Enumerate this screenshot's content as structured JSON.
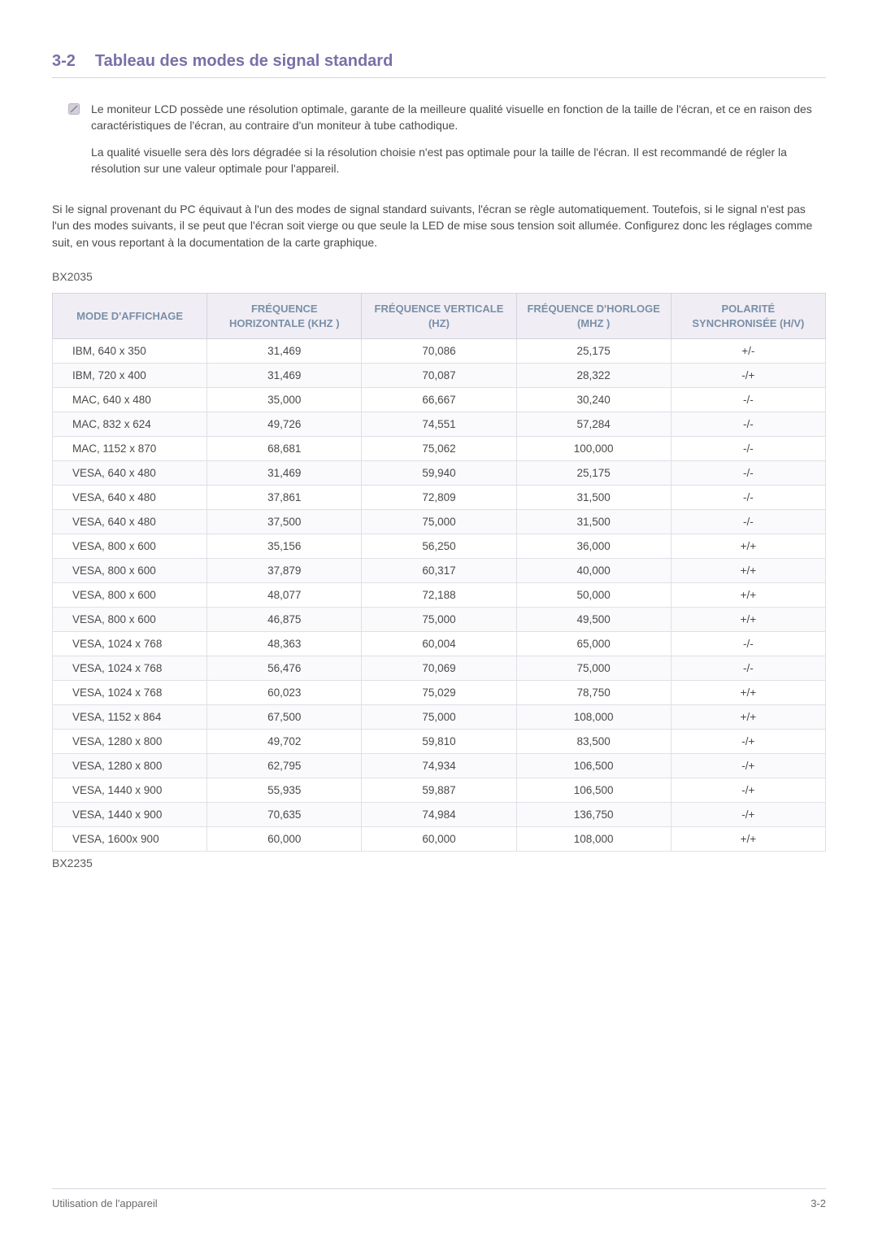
{
  "heading": {
    "num": "3-2",
    "title": "Tableau des modes de signal standard"
  },
  "note": {
    "p1": "Le moniteur LCD possède une résolution optimale, garante de la meilleure qualité visuelle en fonction de la taille de l'écran, et ce en raison des caractéristiques de l'écran, au contraire d'un moniteur à tube cathodique.",
    "p2": "La qualité visuelle sera dès lors dégradée si la résolution choisie n'est pas optimale pour la taille de l'écran. Il est recommandé de régler la résolution sur une valeur optimale pour l'appareil."
  },
  "body_para": "Si le signal provenant du PC équivaut à l'un des modes de signal standard suivants, l'écran se règle automatiquement. Toutefois, si le signal n'est pas l'un des modes suivants, il se peut que l'écran soit vierge ou que seule la LED de mise sous tension soit allumée. Configurez donc les réglages comme suit, en vous reportant à la documentation de la carte graphique.",
  "model_top": "BX2035",
  "model_bottom": "BX2235",
  "table": {
    "columns": [
      "MODE D'AFFICHAGE",
      "FRÉQUENCE HORIZONTALE (KHZ )",
      "FRÉQUENCE VERTICALE (HZ)",
      "FRÉQUENCE D'HORLOGE (MHZ )",
      "POLARITÉ SYNCHRONISÉE (H/V)"
    ],
    "col_widths": [
      "20%",
      "20%",
      "20%",
      "20%",
      "20%"
    ],
    "header_bg": "#f0eef4",
    "header_color": "#7a8fa8",
    "border_color": "#e2dee7",
    "row_alt_bg": "#faf9fb",
    "rows": [
      [
        "IBM, 640 x 350",
        "31,469",
        "70,086",
        "25,175",
        "+/-"
      ],
      [
        "IBM, 720 x 400",
        "31,469",
        "70,087",
        "28,322",
        "-/+"
      ],
      [
        "MAC, 640 x 480",
        "35,000",
        "66,667",
        "30,240",
        "-/-"
      ],
      [
        "MAC, 832 x 624",
        "49,726",
        "74,551",
        "57,284",
        "-/-"
      ],
      [
        "MAC, 1152 x 870",
        "68,681",
        "75,062",
        "100,000",
        "-/-"
      ],
      [
        "VESA, 640 x 480",
        "31,469",
        "59,940",
        "25,175",
        "-/-"
      ],
      [
        "VESA, 640 x 480",
        "37,861",
        "72,809",
        "31,500",
        "-/-"
      ],
      [
        "VESA, 640 x 480",
        "37,500",
        "75,000",
        "31,500",
        "-/-"
      ],
      [
        "VESA, 800 x 600",
        "35,156",
        "56,250",
        "36,000",
        "+/+"
      ],
      [
        "VESA, 800 x 600",
        "37,879",
        "60,317",
        "40,000",
        "+/+"
      ],
      [
        "VESA, 800 x 600",
        "48,077",
        "72,188",
        "50,000",
        "+/+"
      ],
      [
        "VESA, 800 x 600",
        "46,875",
        "75,000",
        "49,500",
        "+/+"
      ],
      [
        "VESA, 1024 x 768",
        "48,363",
        "60,004",
        "65,000",
        "-/-"
      ],
      [
        "VESA, 1024 x 768",
        "56,476",
        "70,069",
        "75,000",
        "-/-"
      ],
      [
        "VESA, 1024 x 768",
        "60,023",
        "75,029",
        "78,750",
        "+/+"
      ],
      [
        "VESA, 1152 x 864",
        "67,500",
        "75,000",
        "108,000",
        "+/+"
      ],
      [
        "VESA, 1280 x 800",
        "49,702",
        "59,810",
        "83,500",
        "-/+"
      ],
      [
        "VESA, 1280 x 800",
        "62,795",
        "74,934",
        "106,500",
        "-/+"
      ],
      [
        "VESA, 1440 x 900",
        "55,935",
        "59,887",
        "106,500",
        "-/+"
      ],
      [
        "VESA, 1440 x 900",
        "70,635",
        "74,984",
        "136,750",
        "-/+"
      ],
      [
        "VESA, 1600x 900",
        "60,000",
        "60,000",
        "108,000",
        "+/+"
      ]
    ]
  },
  "footer": {
    "left": "Utilisation de l'appareil",
    "right": "3-2"
  },
  "colors": {
    "heading": "#7a6fa8",
    "text": "#4a4a4a",
    "rule": "#d8d4e0"
  }
}
